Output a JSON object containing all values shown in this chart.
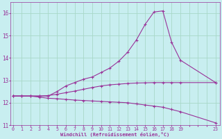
{
  "background_color": "#c8eef0",
  "grid_color": "#a8d8c8",
  "line_color": "#993399",
  "ylim": [
    11,
    16.5
  ],
  "xlim": [
    -0.3,
    23.5
  ],
  "yticks": [
    11,
    12,
    13,
    14,
    15,
    16
  ],
  "xtick_labels": [
    "0",
    "1",
    "2",
    "3",
    "4",
    "5",
    "6",
    "7",
    "8",
    "9",
    "10",
    "11",
    "12",
    "13",
    "14",
    "15",
    "16",
    "17",
    "18",
    "19",
    "",
    "",
    "",
    "23"
  ],
  "xtick_positions": [
    0,
    1,
    2,
    3,
    4,
    5,
    6,
    7,
    8,
    9,
    10,
    11,
    12,
    13,
    14,
    15,
    16,
    17,
    18,
    19,
    20,
    21,
    22,
    23
  ],
  "xlabel": "Windchill (Refroidissement éolien,°C)",
  "line1_x": [
    0,
    1,
    2,
    3,
    4,
    5,
    6,
    7,
    8,
    9,
    10,
    11,
    12,
    13,
    14,
    15,
    16,
    17,
    18,
    19,
    23
  ],
  "line1_y": [
    12.3,
    12.3,
    12.3,
    12.3,
    12.3,
    12.5,
    12.75,
    12.9,
    13.05,
    13.15,
    13.35,
    13.55,
    13.85,
    14.25,
    14.8,
    15.5,
    16.05,
    16.1,
    14.7,
    13.9,
    12.9
  ],
  "line2_x": [
    0,
    1,
    2,
    3,
    4,
    5,
    6,
    7,
    8,
    9,
    10,
    11,
    12,
    13,
    14,
    15,
    16,
    17,
    18,
    19,
    23
  ],
  "line2_y": [
    12.3,
    12.3,
    12.3,
    12.25,
    12.2,
    12.18,
    12.15,
    12.12,
    12.1,
    12.08,
    12.06,
    12.04,
    12.02,
    12.0,
    11.95,
    11.9,
    11.85,
    11.8,
    11.7,
    11.6,
    11.1
  ],
  "line3_x": [
    0,
    1,
    2,
    3,
    4,
    5,
    6,
    7,
    8,
    9,
    10,
    11,
    12,
    13,
    14,
    15,
    16,
    17,
    18,
    19,
    23
  ],
  "line3_y": [
    12.3,
    12.3,
    12.3,
    12.3,
    12.32,
    12.38,
    12.45,
    12.52,
    12.6,
    12.68,
    12.75,
    12.8,
    12.83,
    12.86,
    12.88,
    12.89,
    12.9,
    12.9,
    12.9,
    12.9,
    12.9
  ]
}
